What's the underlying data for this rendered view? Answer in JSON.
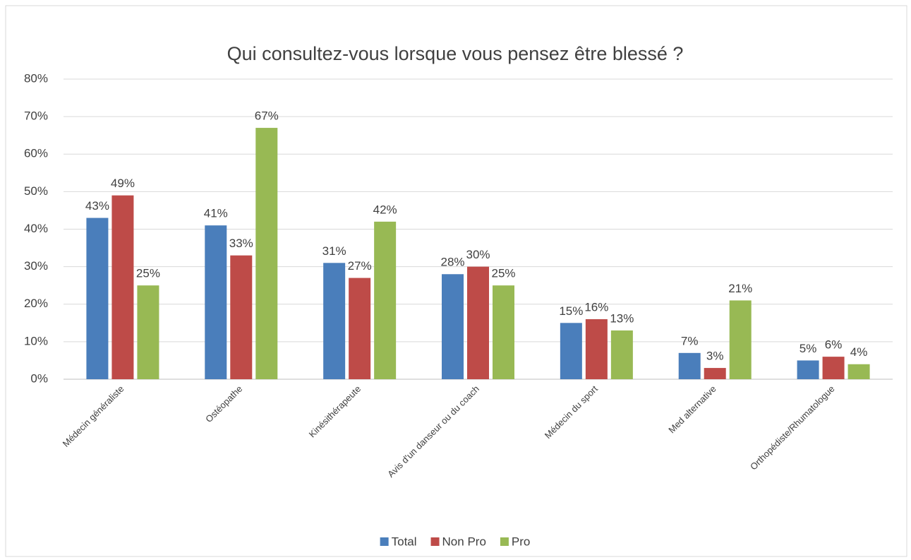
{
  "chart_data": {
    "type": "bar",
    "title": "Qui consultez-vous lorsque vous pensez être blessé ?",
    "categories": [
      "Médecin généraliste",
      "Ostéopathe",
      "Kinésithérapeute",
      "Avis d'un danseur ou du coach",
      "Médecin du sport",
      "Med alternative",
      "Orthopédiste/Rhumatologue"
    ],
    "series": [
      {
        "name": "Total",
        "color": "#4a7ebb",
        "values": [
          43,
          41,
          31,
          28,
          15,
          7,
          5
        ],
        "value_labels": [
          "43%",
          "41%",
          "31%",
          "28%",
          "15%",
          "7%",
          "5%"
        ]
      },
      {
        "name": "Non Pro",
        "color": "#be4b48",
        "values": [
          49,
          33,
          27,
          30,
          16,
          3,
          6
        ],
        "value_labels": [
          "49%",
          "33%",
          "27%",
          "30%",
          "16%",
          "3%",
          "6%"
        ]
      },
      {
        "name": "Pro",
        "color": "#98b954",
        "values": [
          25,
          67,
          42,
          25,
          13,
          21,
          4
        ],
        "value_labels": [
          "25%",
          "67%",
          "42%",
          "25%",
          "13%",
          "21%",
          "4%"
        ]
      }
    ],
    "ylim": [
      0,
      80
    ],
    "yticks": [
      {
        "value": 0,
        "label": "0%"
      },
      {
        "value": 10,
        "label": "10%"
      },
      {
        "value": 20,
        "label": "20%"
      },
      {
        "value": 30,
        "label": "30%"
      },
      {
        "value": 40,
        "label": "40%"
      },
      {
        "value": 50,
        "label": "50%"
      },
      {
        "value": 60,
        "label": "60%"
      },
      {
        "value": 70,
        "label": "70%"
      },
      {
        "value": 80,
        "label": "80%"
      }
    ],
    "grid": true,
    "legend": "bottom"
  }
}
